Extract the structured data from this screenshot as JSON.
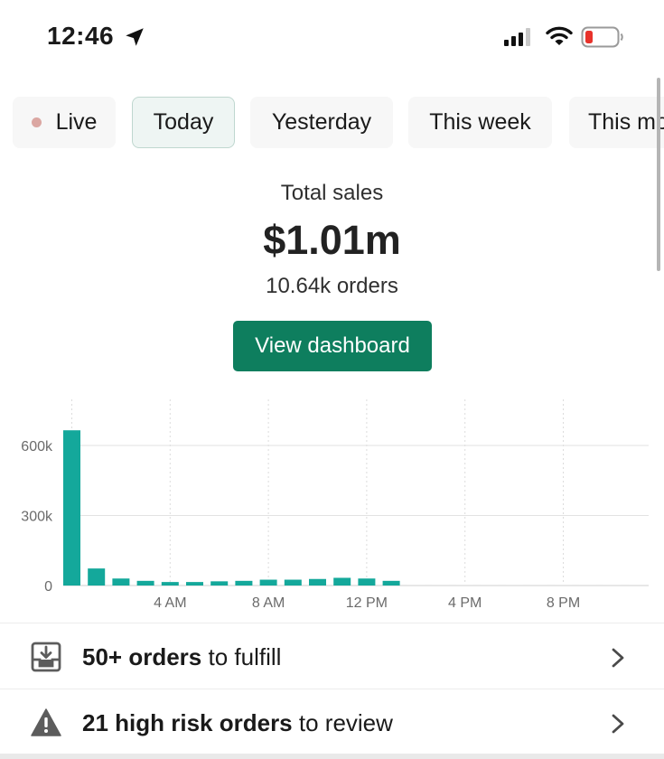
{
  "status_bar": {
    "time": "12:46"
  },
  "tabs": [
    {
      "label": "Live",
      "selected": false
    },
    {
      "label": "Today",
      "selected": true
    },
    {
      "label": "Yesterday",
      "selected": false
    },
    {
      "label": "This week",
      "selected": false
    },
    {
      "label": "This mo",
      "selected": false
    }
  ],
  "summary": {
    "title": "Total sales",
    "value": "$1.01m",
    "orders": "10.64k orders",
    "button_label": "View dashboard"
  },
  "chart_data": {
    "type": "bar",
    "categories": [
      "12 AM",
      "1 AM",
      "2 AM",
      "3 AM",
      "4 AM",
      "5 AM",
      "6 AM",
      "7 AM",
      "8 AM",
      "9 AM",
      "10 AM",
      "11 AM",
      "12 PM",
      "1 PM",
      "2 PM",
      "3 PM",
      "4 PM",
      "5 PM",
      "6 PM",
      "7 PM",
      "8 PM",
      "9 PM",
      "10 PM",
      "11 PM"
    ],
    "values": [
      665000,
      73000,
      30000,
      20000,
      15000,
      15000,
      18000,
      20000,
      25000,
      25000,
      28000,
      33000,
      30000,
      20000,
      null,
      null,
      null,
      null,
      null,
      null,
      null,
      null,
      null,
      null
    ],
    "xticks": [
      "4 AM",
      "8 AM",
      "12 PM",
      "4 PM",
      "8 PM"
    ],
    "yticks": [
      "0",
      "300k",
      "600k"
    ],
    "ylim": [
      0,
      600000
    ],
    "grid": true,
    "color": "#14a89b"
  },
  "rows": [
    {
      "icon": "inbox-download-icon",
      "bold": "50+ orders",
      "rest": " to fulfill"
    },
    {
      "icon": "warning-triangle-icon",
      "bold": "21 high risk orders",
      "rest": " to review"
    }
  ]
}
